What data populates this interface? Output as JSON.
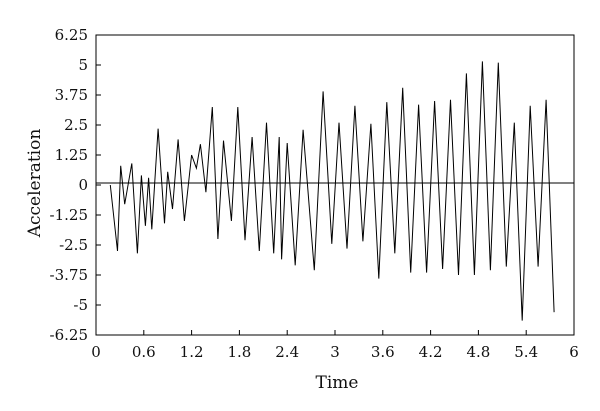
{
  "chart_data": {
    "type": "line",
    "title": "",
    "xlabel": "Time",
    "ylabel": "Acceleration",
    "xlim": [
      0,
      6
    ],
    "ylim": [
      -6.25,
      6.25
    ],
    "x_ticks": [
      "0",
      "0.6",
      "1.2",
      "1.8",
      "2.4",
      "3",
      "3.6",
      "4.2",
      "4.8",
      "5.4",
      "6"
    ],
    "y_ticks": [
      "6.25",
      "5",
      "3.75",
      "2.5",
      "1.25",
      "0",
      "-1.25",
      "-2.5",
      "-3.75",
      "-5",
      "-6.25"
    ],
    "grid": false,
    "zero_line": true,
    "series": [
      {
        "x": [
          0.18,
          0.27,
          0.31,
          0.36,
          0.45,
          0.52,
          0.57,
          0.62,
          0.66,
          0.7,
          0.78,
          0.86,
          0.9,
          0.96,
          1.03,
          1.11,
          1.2,
          1.26,
          1.31,
          1.38,
          1.46,
          1.53,
          1.6,
          1.7,
          1.78,
          1.87,
          1.96,
          2.05,
          2.14,
          2.23,
          2.3,
          2.33,
          2.4,
          2.5,
          2.6,
          2.74,
          2.85,
          2.96,
          3.05,
          3.15,
          3.25,
          3.35,
          3.45,
          3.55,
          3.65,
          3.75,
          3.85,
          3.95,
          4.05,
          4.15,
          4.25,
          4.35,
          4.45,
          4.55,
          4.65,
          4.75,
          4.85,
          4.95,
          5.05,
          5.15,
          5.25,
          5.35,
          5.45,
          5.55,
          5.65,
          5.75
        ],
        "values": [
          0,
          -2.75,
          0.8,
          -0.8,
          0.9,
          -2.85,
          0.4,
          -1.7,
          0.3,
          -1.85,
          2.35,
          -1.6,
          0.55,
          -1.0,
          1.9,
          -1.5,
          1.25,
          0.7,
          1.7,
          -0.3,
          3.25,
          -2.25,
          1.85,
          -1.5,
          3.25,
          -2.3,
          2.0,
          -2.75,
          2.6,
          -2.85,
          2.0,
          -3.1,
          1.75,
          -3.35,
          2.3,
          -3.55,
          3.9,
          -2.45,
          2.6,
          -2.65,
          3.3,
          -2.35,
          2.55,
          -3.9,
          3.45,
          -2.85,
          4.05,
          -3.65,
          3.35,
          -3.65,
          3.5,
          -3.5,
          3.55,
          -3.75,
          4.65,
          -3.75,
          5.15,
          -3.55,
          5.1,
          -3.4,
          2.6,
          -5.65,
          3.3,
          -3.4,
          3.55,
          -5.3
        ]
      }
    ]
  }
}
